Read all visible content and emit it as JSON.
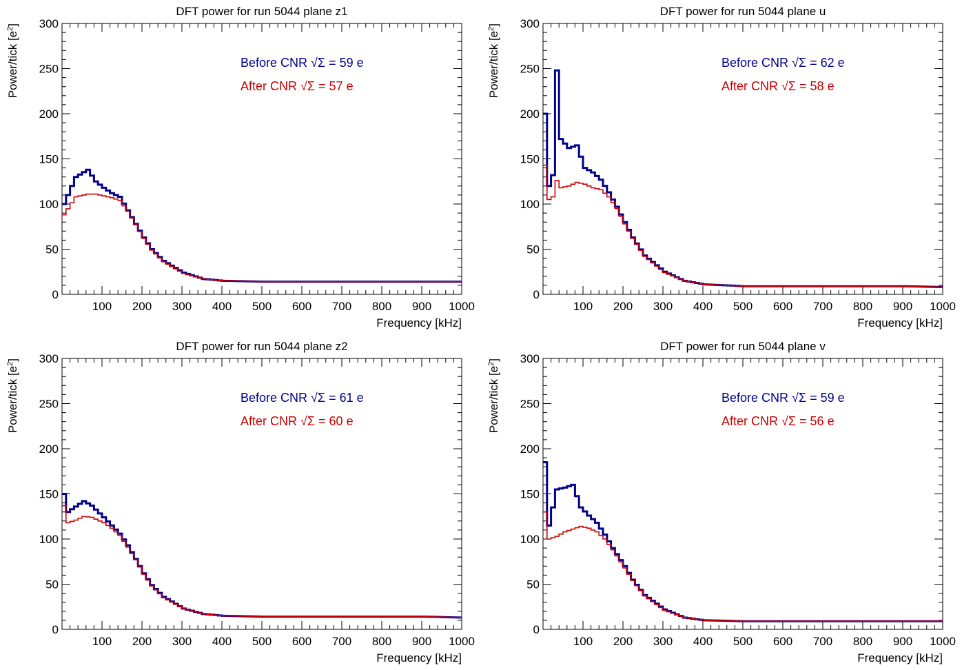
{
  "chart_data": [
    {
      "type": "line",
      "title": "DFT power for run 5044 plane z1",
      "xlabel": "Frequency [kHz]",
      "ylabel": "Power/tick [e",
      "ylabel_sup": "2",
      "ylabel_end": "]",
      "xlim": [
        0,
        1000
      ],
      "ylim": [
        0,
        300
      ],
      "xticks": [
        100,
        200,
        300,
        400,
        500,
        600,
        700,
        800,
        900,
        1000
      ],
      "yticks": [
        0,
        50,
        100,
        150,
        200,
        250,
        300
      ],
      "legend": [
        {
          "prefix": "Before CNR ",
          "suffix": " = 59 e",
          "color": "#00008b"
        },
        {
          "prefix": "After CNR ",
          "suffix": " = 57 e",
          "color": "#cc0000"
        }
      ],
      "series": [
        {
          "color": "#00008b",
          "points": [
            [
              0,
              100
            ],
            [
              30,
              130
            ],
            [
              60,
              138
            ],
            [
              80,
              125
            ],
            [
              100,
              118
            ],
            [
              120,
              112
            ],
            [
              140,
              108
            ],
            [
              160,
              93
            ],
            [
              180,
              78
            ],
            [
              200,
              63
            ],
            [
              220,
              50
            ],
            [
              250,
              37
            ],
            [
              300,
              24
            ],
            [
              350,
              17
            ],
            [
              400,
              15
            ],
            [
              500,
              14
            ],
            [
              600,
              14
            ],
            [
              700,
              14
            ],
            [
              800,
              14
            ],
            [
              900,
              14
            ],
            [
              1000,
              14
            ]
          ]
        },
        {
          "color": "#cc0000",
          "points": [
            [
              0,
              88
            ],
            [
              30,
              108
            ],
            [
              60,
              111
            ],
            [
              80,
              111
            ],
            [
              100,
              109
            ],
            [
              120,
              107
            ],
            [
              140,
              104
            ],
            [
              160,
              92
            ],
            [
              180,
              77
            ],
            [
              200,
              62
            ],
            [
              220,
              49
            ],
            [
              250,
              36
            ],
            [
              300,
              23
            ],
            [
              350,
              17
            ],
            [
              400,
              15
            ],
            [
              500,
              14
            ],
            [
              600,
              14
            ],
            [
              700,
              14
            ],
            [
              800,
              14
            ],
            [
              900,
              14
            ],
            [
              1000,
              14
            ]
          ]
        }
      ]
    },
    {
      "type": "line",
      "title": "DFT power for run 5044 plane u",
      "xlabel": "Frequency [kHz]",
      "ylabel": "Power/tick [e",
      "ylabel_sup": "2",
      "ylabel_end": "]",
      "xlim": [
        0,
        1000
      ],
      "ylim": [
        0,
        300
      ],
      "xticks": [
        100,
        200,
        300,
        400,
        500,
        600,
        700,
        800,
        900,
        1000
      ],
      "yticks": [
        0,
        50,
        100,
        150,
        200,
        250,
        300
      ],
      "legend": [
        {
          "prefix": "Before CNR ",
          "suffix": " = 62 e",
          "color": "#00008b"
        },
        {
          "prefix": "After CNR ",
          "suffix": " = 58 e",
          "color": "#cc0000"
        }
      ],
      "series": [
        {
          "color": "#00008b",
          "points": [
            [
              0,
              200
            ],
            [
              10,
              120
            ],
            [
              20,
              132
            ],
            [
              30,
              248
            ],
            [
              40,
              172
            ],
            [
              60,
              162
            ],
            [
              80,
              165
            ],
            [
              100,
              140
            ],
            [
              120,
              135
            ],
            [
              140,
              127
            ],
            [
              160,
              113
            ],
            [
              180,
              97
            ],
            [
              200,
              80
            ],
            [
              220,
              63
            ],
            [
              250,
              43
            ],
            [
              300,
              25
            ],
            [
              350,
              15
            ],
            [
              400,
              11
            ],
            [
              500,
              9
            ],
            [
              600,
              9
            ],
            [
              700,
              9
            ],
            [
              800,
              9
            ],
            [
              900,
              9
            ],
            [
              1000,
              8
            ]
          ]
        },
        {
          "color": "#cc0000",
          "points": [
            [
              0,
              143
            ],
            [
              10,
              105
            ],
            [
              20,
              108
            ],
            [
              30,
              126
            ],
            [
              40,
              118
            ],
            [
              60,
              120
            ],
            [
              80,
              124
            ],
            [
              100,
              122
            ],
            [
              120,
              118
            ],
            [
              140,
              116
            ],
            [
              160,
              108
            ],
            [
              180,
              95
            ],
            [
              200,
              78
            ],
            [
              220,
              62
            ],
            [
              250,
              42
            ],
            [
              300,
              24
            ],
            [
              350,
              15
            ],
            [
              400,
              11
            ],
            [
              500,
              9
            ],
            [
              600,
              9
            ],
            [
              700,
              9
            ],
            [
              800,
              9
            ],
            [
              900,
              9
            ],
            [
              1000,
              8
            ]
          ]
        }
      ]
    },
    {
      "type": "line",
      "title": "DFT power for run 5044 plane z2",
      "xlabel": "Frequency [kHz]",
      "ylabel": "Power/tick [e",
      "ylabel_sup": "2",
      "ylabel_end": "]",
      "xlim": [
        0,
        1000
      ],
      "ylim": [
        0,
        300
      ],
      "xticks": [
        100,
        200,
        300,
        400,
        500,
        600,
        700,
        800,
        900,
        1000
      ],
      "yticks": [
        0,
        50,
        100,
        150,
        200,
        250,
        300
      ],
      "legend": [
        {
          "prefix": "Before CNR ",
          "suffix": " = 61 e",
          "color": "#00008b"
        },
        {
          "prefix": "After CNR ",
          "suffix": " = 60 e",
          "color": "#cc0000"
        }
      ],
      "series": [
        {
          "color": "#00008b",
          "points": [
            [
              0,
              150
            ],
            [
              10,
              130
            ],
            [
              30,
              136
            ],
            [
              50,
              142
            ],
            [
              70,
              137
            ],
            [
              100,
              124
            ],
            [
              120,
              115
            ],
            [
              140,
              106
            ],
            [
              160,
              93
            ],
            [
              180,
              78
            ],
            [
              200,
              62
            ],
            [
              220,
              49
            ],
            [
              250,
              36
            ],
            [
              300,
              23
            ],
            [
              350,
              17
            ],
            [
              400,
              15
            ],
            [
              500,
              14
            ],
            [
              600,
              14
            ],
            [
              700,
              14
            ],
            [
              800,
              14
            ],
            [
              900,
              14
            ],
            [
              1000,
              13
            ]
          ]
        },
        {
          "color": "#cc0000",
          "points": [
            [
              0,
              137
            ],
            [
              10,
              118
            ],
            [
              30,
              121
            ],
            [
              50,
              125
            ],
            [
              70,
              124
            ],
            [
              100,
              118
            ],
            [
              120,
              112
            ],
            [
              140,
              104
            ],
            [
              160,
              91
            ],
            [
              180,
              77
            ],
            [
              200,
              61
            ],
            [
              220,
              48
            ],
            [
              250,
              35
            ],
            [
              300,
              23
            ],
            [
              350,
              17
            ],
            [
              400,
              15
            ],
            [
              500,
              14
            ],
            [
              600,
              14
            ],
            [
              700,
              14
            ],
            [
              800,
              14
            ],
            [
              900,
              14
            ],
            [
              1000,
              13
            ]
          ]
        }
      ]
    },
    {
      "type": "line",
      "title": "DFT power for run 5044 plane v",
      "xlabel": "Frequency [kHz]",
      "ylabel": "Power/tick [e",
      "ylabel_sup": "2",
      "ylabel_end": "]",
      "xlim": [
        0,
        1000
      ],
      "ylim": [
        0,
        300
      ],
      "xticks": [
        100,
        200,
        300,
        400,
        500,
        600,
        700,
        800,
        900,
        1000
      ],
      "yticks": [
        0,
        50,
        100,
        150,
        200,
        250,
        300
      ],
      "legend": [
        {
          "prefix": "Before CNR ",
          "suffix": " = 59 e",
          "color": "#00008b"
        },
        {
          "prefix": "After CNR ",
          "suffix": " = 56 e",
          "color": "#cc0000"
        }
      ],
      "series": [
        {
          "color": "#00008b",
          "points": [
            [
              0,
              185
            ],
            [
              10,
              115
            ],
            [
              30,
              155
            ],
            [
              50,
              157
            ],
            [
              70,
              160
            ],
            [
              90,
              135
            ],
            [
              110,
              126
            ],
            [
              130,
              118
            ],
            [
              150,
              105
            ],
            [
              170,
              90
            ],
            [
              200,
              70
            ],
            [
              220,
              55
            ],
            [
              250,
              38
            ],
            [
              300,
              22
            ],
            [
              350,
              13
            ],
            [
              400,
              10
            ],
            [
              500,
              9
            ],
            [
              600,
              9
            ],
            [
              700,
              9
            ],
            [
              800,
              9
            ],
            [
              900,
              9
            ],
            [
              1000,
              9
            ]
          ]
        },
        {
          "color": "#cc0000",
          "points": [
            [
              0,
              130
            ],
            [
              10,
              100
            ],
            [
              30,
              103
            ],
            [
              50,
              108
            ],
            [
              70,
              111
            ],
            [
              90,
              114
            ],
            [
              110,
              112
            ],
            [
              130,
              108
            ],
            [
              150,
              100
            ],
            [
              170,
              88
            ],
            [
              200,
              68
            ],
            [
              220,
              54
            ],
            [
              250,
              37
            ],
            [
              300,
              21
            ],
            [
              350,
              13
            ],
            [
              400,
              10
            ],
            [
              500,
              9
            ],
            [
              600,
              9
            ],
            [
              700,
              9
            ],
            [
              800,
              9
            ],
            [
              900,
              9
            ],
            [
              1000,
              9
            ]
          ]
        }
      ]
    }
  ]
}
